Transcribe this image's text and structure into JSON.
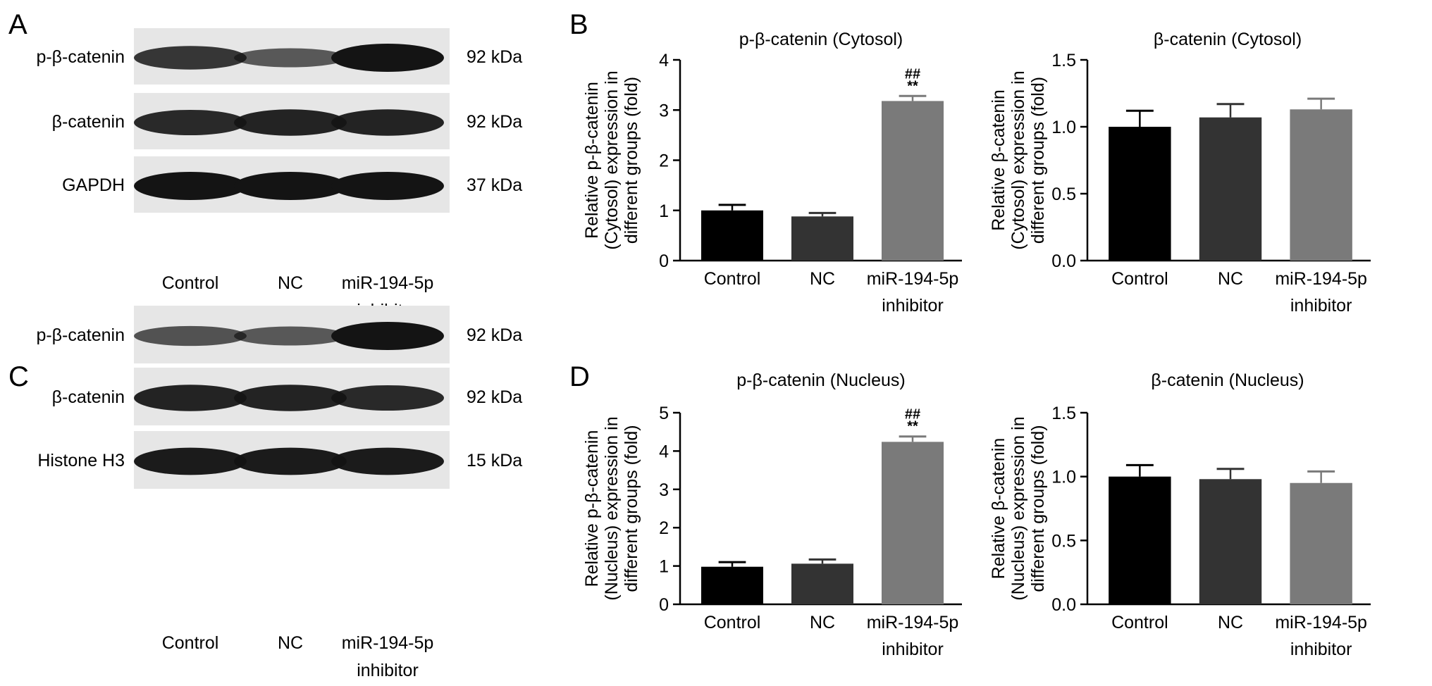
{
  "panels": {
    "A": "A",
    "B": "B",
    "C": "C",
    "D": "D"
  },
  "blots": [
    {
      "panel": "A",
      "bands": [
        {
          "label": "p-β-catenin",
          "size": "92 kDa",
          "intensity": [
            0.75,
            0.5,
            1.0
          ]
        },
        {
          "label": "β-catenin",
          "size": "92 kDa",
          "intensity": [
            0.85,
            0.9,
            0.9
          ]
        },
        {
          "label": "GAPDH",
          "size": "37 kDa",
          "intensity": [
            1.0,
            1.0,
            1.0
          ]
        }
      ],
      "lanes": [
        "Control",
        "NC",
        "miR-194-5p",
        "inhibitor"
      ]
    },
    {
      "panel": "C",
      "bands": [
        {
          "label": "p-β-catenin",
          "size": "92 kDa",
          "intensity": [
            0.55,
            0.5,
            1.0
          ]
        },
        {
          "label": "β-catenin",
          "size": "92 kDa",
          "intensity": [
            0.9,
            0.9,
            0.85
          ]
        },
        {
          "label": "Histone H3",
          "size": "15 kDa",
          "intensity": [
            0.95,
            0.95,
            0.95
          ]
        }
      ],
      "lanes": [
        "Control",
        "NC",
        "miR-194-5p",
        "inhibitor"
      ]
    }
  ],
  "colors": {
    "control": "#000000",
    "nc": "#333333",
    "inhibitor": "#7a7a7a",
    "blot_bg": "#e6e6e6",
    "band": "#141414"
  },
  "chart_data": [
    {
      "type": "bar",
      "panel": "B",
      "title": "p-β-catenin (Cytosol)",
      "ylabel_lines": [
        "Relative p-β-catenin",
        "(Cytosol) expression in",
        "different groups (fold)"
      ],
      "categories": [
        [
          "Control"
        ],
        [
          "NC"
        ],
        [
          "miR-194-5p",
          "inhibitor"
        ]
      ],
      "values": [
        1.0,
        0.88,
        3.18
      ],
      "errors": [
        0.11,
        0.07,
        0.1
      ],
      "ylim": [
        0,
        4
      ],
      "ticks": [
        "0",
        "1",
        "2",
        "3",
        "4"
      ],
      "annotations": [
        {
          "bar": 2,
          "lines": [
            "##",
            "**"
          ]
        }
      ]
    },
    {
      "type": "bar",
      "panel": "B",
      "title": "β-catenin (Cytosol)",
      "ylabel_lines": [
        "Relative β-catenin",
        "(Cytosol) expression in",
        "different groups (fold)"
      ],
      "categories": [
        [
          "Control"
        ],
        [
          "NC"
        ],
        [
          "miR-194-5p",
          "inhibitor"
        ]
      ],
      "values": [
        1.0,
        1.07,
        1.13
      ],
      "errors": [
        0.12,
        0.1,
        0.08
      ],
      "ylim": [
        0,
        1.5
      ],
      "ticks": [
        "0.0",
        "0.5",
        "1.0",
        "1.5"
      ],
      "annotations": []
    },
    {
      "type": "bar",
      "panel": "D",
      "title": "p-β-catenin (Nucleus)",
      "ylabel_lines": [
        "Relative p-β-catenin",
        "(Nucleus) expression in",
        "different groups (fold)"
      ],
      "categories": [
        [
          "Control"
        ],
        [
          "NC"
        ],
        [
          "miR-194-5p",
          "inhibitor"
        ]
      ],
      "values": [
        0.98,
        1.06,
        4.24
      ],
      "errors": [
        0.12,
        0.11,
        0.14
      ],
      "ylim": [
        0,
        5
      ],
      "ticks": [
        "0",
        "1",
        "2",
        "3",
        "4",
        "5"
      ],
      "annotations": [
        {
          "bar": 2,
          "lines": [
            "##",
            "**"
          ]
        }
      ]
    },
    {
      "type": "bar",
      "panel": "D",
      "title": "β-catenin (Nucleus)",
      "ylabel_lines": [
        "Relative β-catenin",
        "(Nucleus) expression in",
        "different groups (fold)"
      ],
      "categories": [
        [
          "Control"
        ],
        [
          "NC"
        ],
        [
          "miR-194-5p",
          "inhibitor"
        ]
      ],
      "values": [
        1.0,
        0.98,
        0.95
      ],
      "errors": [
        0.09,
        0.08,
        0.09
      ],
      "ylim": [
        0,
        1.5
      ],
      "ticks": [
        "0.0",
        "0.5",
        "1.0",
        "1.5"
      ],
      "annotations": []
    }
  ]
}
